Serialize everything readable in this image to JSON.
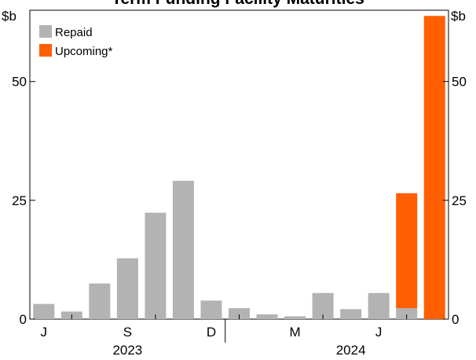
{
  "chart_data": {
    "type": "bar",
    "title": "Term Funding Facility Maturities",
    "y_unit": "$b",
    "ylim": [
      0,
      65
    ],
    "y_ticks": [
      "0",
      "25",
      "50"
    ],
    "y_tick_values": [
      0,
      25,
      50
    ],
    "x_month_labels": [
      "J",
      "S",
      "D",
      "M",
      "J"
    ],
    "x_year_labels": [
      "2023",
      "2024"
    ],
    "categories": [
      "2023-06",
      "2023-07",
      "2023-08",
      "2023-09",
      "2023-10",
      "2023-11",
      "2023-12",
      "2024-01",
      "2024-02",
      "2024-03",
      "2024-04",
      "2024-05",
      "2024-06",
      "2024-07"
    ],
    "series": [
      {
        "name": "Repaid",
        "color": "#b3b3b3",
        "values": [
          3.2,
          1.6,
          7.5,
          12.8,
          22.4,
          29.1,
          3.9,
          2.3,
          1.0,
          0.6,
          5.5,
          2.1,
          5.5,
          2.3
        ]
      },
      {
        "name": "Upcoming*",
        "color": "#ff5f00",
        "values": [
          0,
          0,
          0,
          0,
          0,
          0,
          0,
          0,
          0,
          0,
          0,
          0,
          0,
          24.2
        ]
      }
    ],
    "extra_bar": {
      "category": "2024-08",
      "series": "Upcoming*",
      "value": 63.8
    },
    "legend_position": "top-left",
    "grid": false
  }
}
